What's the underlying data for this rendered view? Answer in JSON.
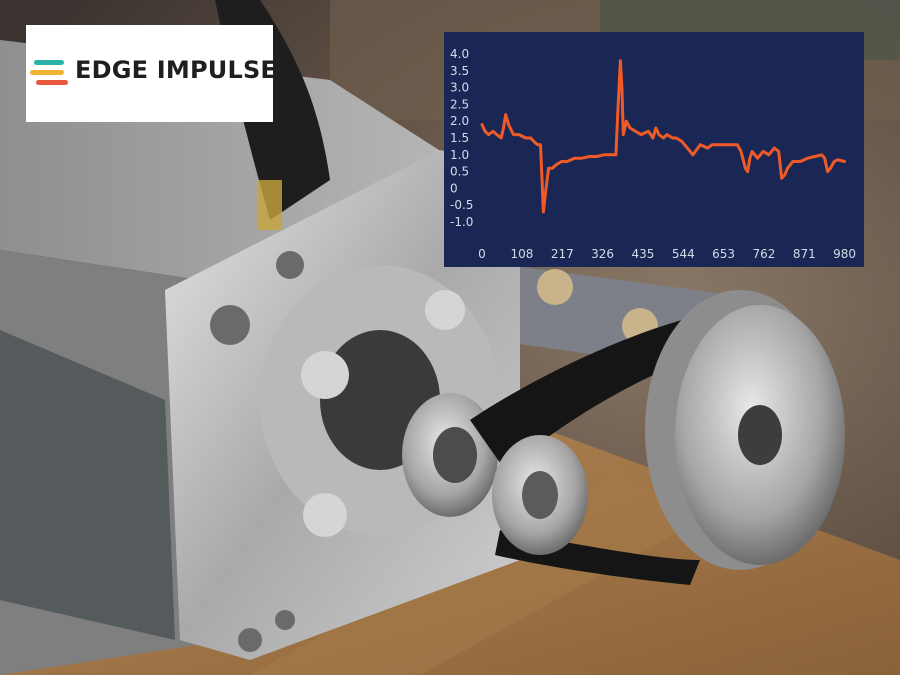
{
  "logo": {
    "brand_name": "EDGE IMPULSE",
    "mark_colors": [
      "#2bb3a8",
      "#f2b233",
      "#e9573f"
    ]
  },
  "chart_data": {
    "type": "line",
    "title": "",
    "xlabel": "",
    "ylabel": "",
    "xlim": [
      0,
      1000
    ],
    "ylim": [
      -1.0,
      4.0
    ],
    "x_tick_labels": [
      "0",
      "108",
      "217",
      "326",
      "435",
      "544",
      "653",
      "762",
      "871",
      "980"
    ],
    "y_tick_labels": [
      "4.0",
      "3.5",
      "3.0",
      "2.5",
      "2.0",
      "1.5",
      "1.0",
      "0.5",
      "0",
      "-0.5",
      "-1.0"
    ],
    "grid": false,
    "background_color": "#1a2754",
    "text_color": "#d4dbe8",
    "series": [
      {
        "color": "#f05a28",
        "x": [
          0,
          8,
          18,
          30,
          40,
          52,
          58,
          64,
          72,
          85,
          100,
          118,
          132,
          140,
          150,
          158,
          166,
          172,
          180,
          190,
          200,
          215,
          230,
          250,
          270,
          290,
          310,
          330,
          350,
          362,
          368,
          374,
          378,
          382,
          390,
          400,
          415,
          430,
          450,
          462,
          470,
          478,
          490,
          500,
          515,
          525,
          540,
          555,
          570,
          590,
          610,
          622,
          630,
          650,
          670,
          690,
          700,
          712,
          718,
          724,
          730,
          745,
          760,
          775,
          790,
          802,
          810,
          818,
          826,
          840,
          860,
          880,
          900,
          918,
          926,
          934,
          942,
          952,
          962,
          980
        ],
        "y": [
          1.9,
          1.7,
          1.6,
          1.7,
          1.6,
          1.5,
          1.8,
          2.2,
          1.9,
          1.6,
          1.6,
          1.5,
          1.5,
          1.4,
          1.3,
          1.3,
          -0.7,
          -0.1,
          0.6,
          0.6,
          0.7,
          0.8,
          0.8,
          0.9,
          0.9,
          0.95,
          0.95,
          1.0,
          1.0,
          1.0,
          2.5,
          3.8,
          3.0,
          1.6,
          2.0,
          1.8,
          1.7,
          1.6,
          1.7,
          1.5,
          1.8,
          1.6,
          1.5,
          1.6,
          1.5,
          1.5,
          1.4,
          1.2,
          1.0,
          1.3,
          1.2,
          1.3,
          1.3,
          1.3,
          1.3,
          1.3,
          1.1,
          0.6,
          0.5,
          0.9,
          1.1,
          0.9,
          1.1,
          1.0,
          1.2,
          1.1,
          0.3,
          0.4,
          0.6,
          0.8,
          0.8,
          0.9,
          0.95,
          1.0,
          0.9,
          0.5,
          0.6,
          0.8,
          0.85,
          0.8
        ]
      }
    ]
  }
}
